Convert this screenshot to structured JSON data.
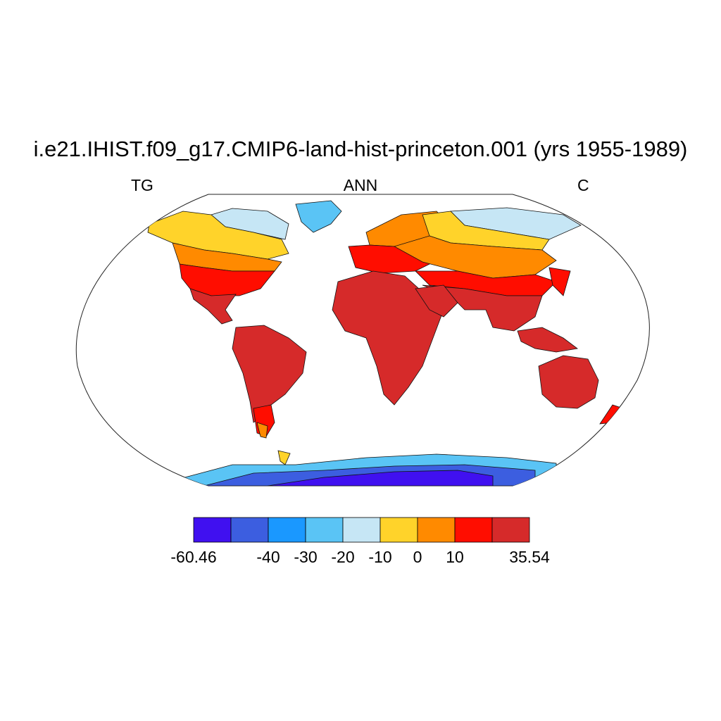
{
  "title": "i.e21.IHIST.f09_g17.CMIP6-land-hist-princeton.001 (yrs 1955-1989)",
  "left_label": "TG",
  "center_label": "ANN",
  "right_label": "C",
  "colorbar": {
    "colors": [
      "#4010f0",
      "#3c5ee0",
      "#1a98ff",
      "#5ac4f5",
      "#c6e6f5",
      "#ffd32a",
      "#ff8a00",
      "#ff0d00",
      "#d62a2a"
    ],
    "labels": [
      {
        "text": "-60.46",
        "edge": 0
      },
      {
        "text": "-40",
        "edge": 2
      },
      {
        "text": "-30",
        "edge": 3
      },
      {
        "text": "-20",
        "edge": 4
      },
      {
        "text": "-10",
        "edge": 5
      },
      {
        "text": "0",
        "edge": 6
      },
      {
        "text": "10",
        "edge": 7
      },
      {
        "text": "35.54",
        "edge": 9
      }
    ]
  }
}
